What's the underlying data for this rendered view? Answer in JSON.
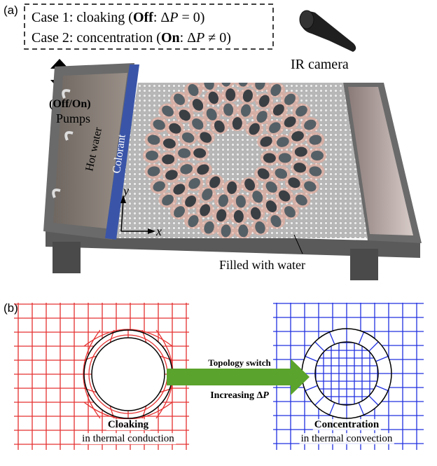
{
  "panel_a": {
    "label": "(a)",
    "case1": [
      "Case 1: cloaking (",
      "Off",
      ": Δ",
      "P",
      " = 0)"
    ],
    "case2": [
      "Case 2: concentration (",
      "On",
      ": Δ",
      "P",
      " ≠ 0)"
    ],
    "camera_label": "IR camera",
    "pumps_state": "(Off/On)",
    "pumps": "Pumps",
    "hot_water": "Hot water",
    "colorant": "Colorant",
    "axis_y": "y",
    "axis_x": "x",
    "water": "Filled with water"
  },
  "panel_b": {
    "label": "(b)",
    "arrow_top": "Topology switch",
    "arrow_bottom": [
      "Increasing Δ",
      "P"
    ],
    "left": [
      "Cloaking",
      "in thermal conduction"
    ],
    "right": [
      "Concentration",
      "in thermal convection"
    ]
  }
}
